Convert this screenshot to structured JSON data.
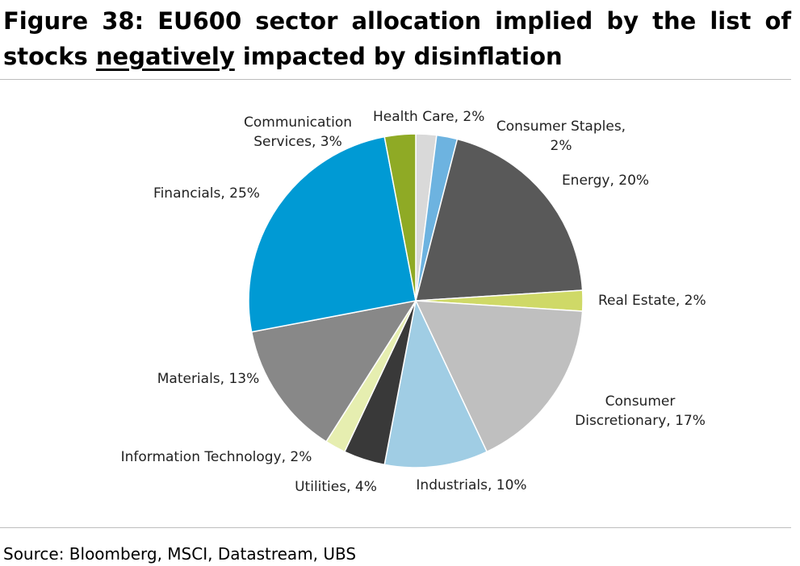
{
  "title": {
    "line1": "Figure 38: EU600 sector allocation implied by the list of",
    "line2_pre": "stocks ",
    "line2_underlined": "negatively",
    "line2_post": " impacted by disinflation"
  },
  "source": "Source: Bloomberg, MSCI, Datastream, UBS",
  "chart_data": {
    "type": "pie",
    "title": "",
    "start_angle_deg": 0,
    "direction": "clockwise",
    "slices": [
      {
        "label_lines": [
          "Health Care, 2%"
        ],
        "category": "Health Care",
        "value": 2,
        "color": "#d9d9d9"
      },
      {
        "label_lines": [
          "Consumer Staples,",
          "2%"
        ],
        "category": "Consumer Staples",
        "value": 2,
        "color": "#6db3e0"
      },
      {
        "label_lines": [
          "Energy, 20%"
        ],
        "category": "Energy",
        "value": 20,
        "color": "#595959"
      },
      {
        "label_lines": [
          "Real Estate, 2%"
        ],
        "category": "Real Estate",
        "value": 2,
        "color": "#cfd967"
      },
      {
        "label_lines": [
          "Consumer",
          "Discretionary, 17%"
        ],
        "category": "Consumer Discretionary",
        "value": 17,
        "color": "#bfbfbf"
      },
      {
        "label_lines": [
          "Industrials, 10%"
        ],
        "category": "Industrials",
        "value": 10,
        "color": "#a0cde4"
      },
      {
        "label_lines": [
          "Utilities, 4%"
        ],
        "category": "Utilities",
        "value": 4,
        "color": "#393939"
      },
      {
        "label_lines": [
          "Information Technology, 2%"
        ],
        "category": "Information Technology",
        "value": 2,
        "color": "#e6eeb0"
      },
      {
        "label_lines": [
          "Materials, 13%"
        ],
        "category": "Materials",
        "value": 13,
        "color": "#888888"
      },
      {
        "label_lines": [
          "Financials, 25%"
        ],
        "category": "Financials",
        "value": 25,
        "color": "#009ad4"
      },
      {
        "label_lines": [
          "Communication",
          "Services, 3%"
        ],
        "category": "Communication Services",
        "value": 3,
        "color": "#8faa25"
      }
    ]
  }
}
